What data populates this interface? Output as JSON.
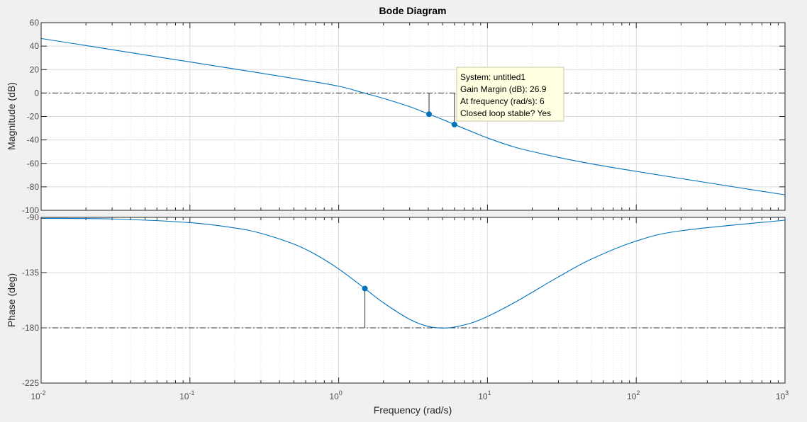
{
  "chart_data": {
    "type": "line",
    "title": "Bode Diagram",
    "xlabel": "Frequency  (rad/s)",
    "xscale": "log",
    "xlim": [
      0.01,
      1000
    ],
    "x_ticks": [
      {
        "base": "10",
        "exp": "-2"
      },
      {
        "base": "10",
        "exp": "-1"
      },
      {
        "base": "10",
        "exp": "0"
      },
      {
        "base": "10",
        "exp": "1"
      },
      {
        "base": "10",
        "exp": "2"
      },
      {
        "base": "10",
        "exp": "3"
      }
    ],
    "grid": true,
    "magnitude": {
      "ylabel": "Magnitude (dB)",
      "ylim": [
        -100,
        60
      ],
      "yticks": [
        "-100",
        "-80",
        "-60",
        "-40",
        "-20",
        "0",
        "20",
        "40",
        "60"
      ],
      "reference_line": 0,
      "x": [
        0.01,
        0.02,
        0.05,
        0.1,
        0.2,
        0.5,
        1,
        1.5,
        2,
        3,
        4,
        5,
        6,
        8,
        10,
        15,
        20,
        30,
        50,
        100,
        200,
        500,
        1000
      ],
      "y": [
        46.5,
        40.5,
        32.5,
        26.5,
        20.5,
        12.4,
        5.8,
        -0.2,
        -4.6,
        -11.6,
        -17.8,
        -22.6,
        -26.9,
        -33.4,
        -38.3,
        -45.9,
        -49.9,
        -54.9,
        -60.4,
        -66.8,
        -72.9,
        -80.9,
        -86.8
      ],
      "markers": [
        {
          "x": 4.05,
          "y": -18
        },
        {
          "x": 6,
          "y": -26.9
        }
      ],
      "datatip": {
        "lines": [
          "System: untitled1",
          "Gain Margin (dB): 26.9",
          "At frequency (rad/s): 6",
          "Closed loop stable? Yes"
        ]
      }
    },
    "phase": {
      "ylabel": "Phase (deg)",
      "ylim": [
        -225,
        -90
      ],
      "yticks": [
        "-225",
        "-180",
        "-135",
        "-90"
      ],
      "reference_line": -180,
      "x": [
        0.01,
        0.03,
        0.1,
        0.2,
        0.3,
        0.5,
        0.7,
        1,
        1.5,
        2,
        3,
        4,
        5,
        6,
        8,
        10,
        15,
        20,
        30,
        50,
        100,
        200,
        1000
      ],
      "y": [
        -90.8,
        -91.3,
        -94.3,
        -98.6,
        -103,
        -111.8,
        -120.3,
        -132,
        -148,
        -159.6,
        -173.1,
        -178.9,
        -180.2,
        -179.4,
        -175.6,
        -170.8,
        -159.8,
        -151,
        -138.5,
        -124,
        -109.3,
        -100.9,
        -92.3
      ],
      "markers": [
        {
          "x": 1.5,
          "y": -148
        }
      ]
    },
    "colors": {
      "line": "#0072bd",
      "marker": "#0072bd",
      "tip_background": "#ffffe1",
      "tip_border": "#c8c8a0"
    }
  }
}
